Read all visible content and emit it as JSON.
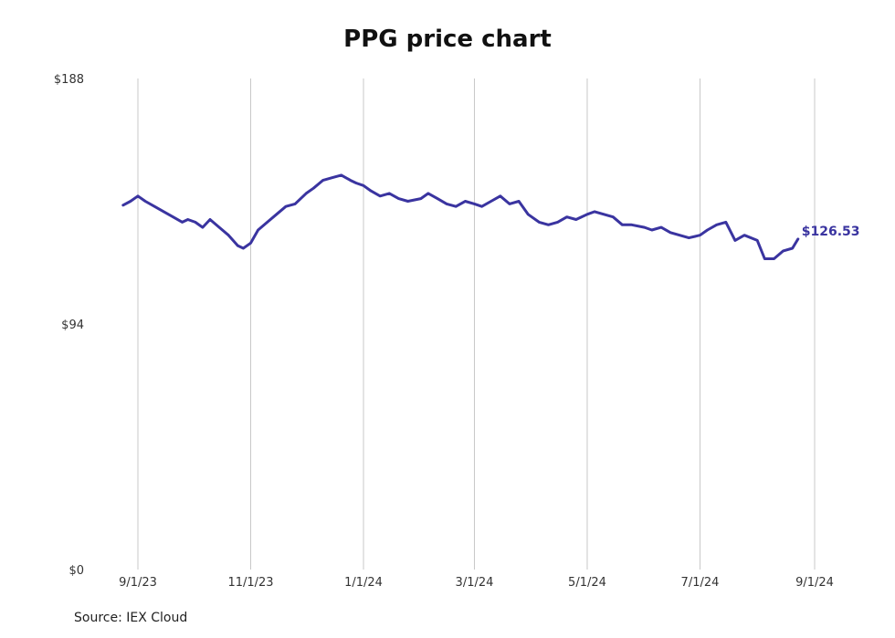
{
  "chart_data": {
    "type": "line",
    "title": "PPG price chart",
    "source": "Source: IEX Cloud",
    "ylim": [
      0,
      188
    ],
    "y_ticks": [
      {
        "value": 188,
        "label": "$188"
      },
      {
        "value": 94,
        "label": "$94"
      },
      {
        "value": 0,
        "label": "$0"
      }
    ],
    "x_ticks": [
      {
        "date": "2023-09-01",
        "label": "9/1/23"
      },
      {
        "date": "2023-11-01",
        "label": "11/1/23"
      },
      {
        "date": "2024-01-01",
        "label": "1/1/24"
      },
      {
        "date": "2024-03-01",
        "label": "3/1/24"
      },
      {
        "date": "2024-05-01",
        "label": "5/1/24"
      },
      {
        "date": "2024-07-01",
        "label": "7/1/24"
      },
      {
        "date": "2024-09-01",
        "label": "9/1/24"
      }
    ],
    "grid": "vertical",
    "line_color": "#3a34a0",
    "last_value_label": "$126.53",
    "series": [
      {
        "x": [
          "2023-08-24",
          "2023-08-28",
          "2023-09-01",
          "2023-09-05",
          "2023-09-10",
          "2023-09-15",
          "2023-09-20",
          "2023-09-25",
          "2023-09-28",
          "2023-10-02",
          "2023-10-06",
          "2023-10-10",
          "2023-10-15",
          "2023-10-20",
          "2023-10-25",
          "2023-10-28",
          "2023-11-01",
          "2023-11-05",
          "2023-11-10",
          "2023-11-15",
          "2023-11-20",
          "2023-11-25",
          "2023-12-01",
          "2023-12-05",
          "2023-12-10",
          "2023-12-15",
          "2023-12-20",
          "2023-12-25",
          "2023-12-28",
          "2024-01-01",
          "2024-01-05",
          "2024-01-10",
          "2024-01-15",
          "2024-01-20",
          "2024-01-25",
          "2024-02-01",
          "2024-02-05",
          "2024-02-10",
          "2024-02-15",
          "2024-02-20",
          "2024-02-25",
          "2024-03-01",
          "2024-03-05",
          "2024-03-10",
          "2024-03-15",
          "2024-03-20",
          "2024-03-25",
          "2024-03-30",
          "2024-04-05",
          "2024-04-10",
          "2024-04-15",
          "2024-04-20",
          "2024-04-25",
          "2024-05-01",
          "2024-05-05",
          "2024-05-10",
          "2024-05-15",
          "2024-05-20",
          "2024-05-25",
          "2024-06-01",
          "2024-06-05",
          "2024-06-10",
          "2024-06-15",
          "2024-06-20",
          "2024-06-25",
          "2024-07-01",
          "2024-07-05",
          "2024-07-10",
          "2024-07-15",
          "2024-07-20",
          "2024-07-25",
          "2024-08-01",
          "2024-08-05",
          "2024-08-10",
          "2024-08-15",
          "2024-08-20",
          "2024-08-23"
        ],
        "values": [
          139.5,
          141,
          143,
          141,
          139,
          137,
          135,
          133,
          134,
          133,
          131,
          134,
          131,
          128,
          124,
          123,
          125,
          130,
          133,
          136,
          139,
          140,
          144,
          146,
          149,
          150,
          151,
          149,
          148,
          147,
          145,
          143,
          144,
          142,
          141,
          142,
          144,
          142,
          140,
          139,
          141,
          140,
          139,
          141,
          143,
          140,
          141,
          136,
          133,
          132,
          133,
          135,
          134,
          136,
          137,
          136,
          135,
          132,
          132,
          131,
          130,
          131,
          129,
          128,
          127,
          128,
          130,
          132,
          133,
          126,
          128,
          126,
          119,
          119,
          122,
          123,
          126.53
        ]
      }
    ]
  }
}
